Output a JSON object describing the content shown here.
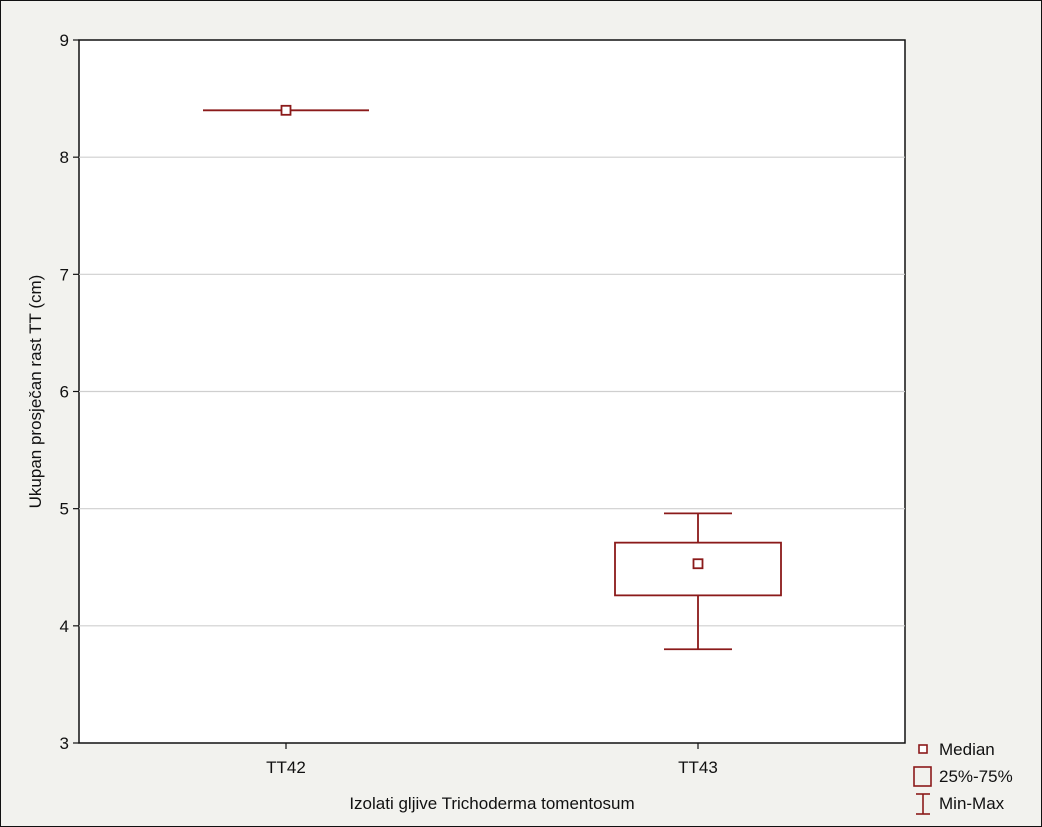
{
  "chart_data": {
    "type": "box",
    "title": "",
    "xlabel": "Izolati gljive Trichoderma tomentosum",
    "ylabel": "Ukupan prosječan rast TT (cm)",
    "ylim": [
      3,
      9
    ],
    "yticks": [
      3,
      4,
      5,
      6,
      7,
      8,
      9
    ],
    "grid": true,
    "categories": [
      "TT42",
      "TT43"
    ],
    "boxes": [
      {
        "category": "TT42",
        "median": 8.4,
        "q1": 8.4,
        "q3": 8.4,
        "min": 8.4,
        "max": 8.4
      },
      {
        "category": "TT43",
        "median": 4.53,
        "q1": 4.26,
        "q3": 4.71,
        "min": 3.8,
        "max": 4.96
      }
    ],
    "legend": {
      "position": "bottom-right",
      "items": [
        {
          "symbol": "median",
          "label": "Median"
        },
        {
          "symbol": "box",
          "label": "25%-75%"
        },
        {
          "symbol": "whisker",
          "label": "Min-Max"
        }
      ]
    },
    "colors": {
      "series": "#8b1a1a",
      "plot_bg": "#ffffff",
      "page_bg": "#f2f2ee",
      "grid": "#cfcfcf",
      "axis": "#111111"
    }
  }
}
